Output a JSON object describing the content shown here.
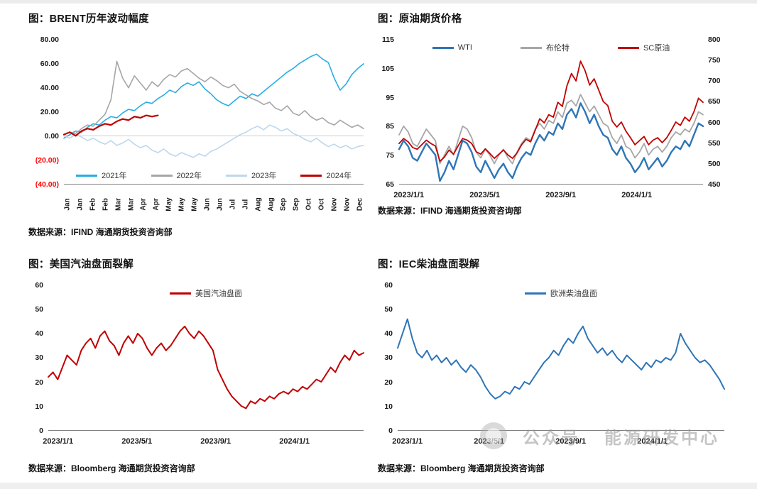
{
  "page": {
    "background": "#ffffff",
    "watermark": {
      "label": "公众号",
      "label2": "能源研发中心"
    }
  },
  "chart_data": [
    {
      "type": "line",
      "title": "图：BRENT历年波动幅度",
      "source": "数据来源：IFIND   海通期货投资咨询部",
      "ylim": [
        -40,
        80
      ],
      "yticks": [
        "80.00",
        "60.00",
        "40.00",
        "20.00",
        "0.00",
        "(20.00)",
        "(40.00)"
      ],
      "zero_line": 0,
      "grid": "zero-line-only",
      "legend_position": "bottom",
      "x_count": 52,
      "xticks_rotated": true,
      "xticks": [
        "Jan",
        "Jan",
        "Feb",
        "Feb",
        "Mar",
        "Mar",
        "Apr",
        "Apr",
        "May",
        "May",
        "May",
        "Jun",
        "Jun",
        "Jul",
        "Jul",
        "Aug",
        "Aug",
        "Sep",
        "Sep",
        "Oct",
        "Oct",
        "Nov",
        "Nov",
        "Dec"
      ],
      "series": [
        {
          "name": "2021年",
          "color": "#27AEE3",
          "width": 1.6,
          "values": [
            -2,
            1,
            4,
            3,
            7,
            10,
            9,
            13,
            16,
            15,
            19,
            22,
            21,
            25,
            28,
            27,
            31,
            34,
            38,
            36,
            41,
            44,
            42,
            45,
            39,
            35,
            30,
            27,
            25,
            29,
            33,
            31,
            35,
            33,
            37,
            41,
            45,
            49,
            53,
            56,
            60,
            63,
            66,
            68,
            64,
            61,
            48,
            38,
            43,
            51,
            56,
            60
          ]
        },
        {
          "name": "2022年",
          "color": "#A6A6A6",
          "width": 1.6,
          "values": [
            1,
            3,
            2,
            6,
            9,
            8,
            13,
            18,
            30,
            62,
            48,
            40,
            50,
            44,
            38,
            45,
            41,
            47,
            51,
            49,
            54,
            56,
            52,
            48,
            45,
            49,
            46,
            42,
            40,
            43,
            37,
            34,
            31,
            29,
            26,
            28,
            23,
            21,
            25,
            19,
            17,
            21,
            16,
            13,
            15,
            11,
            9,
            13,
            10,
            7,
            9,
            6
          ]
        },
        {
          "name": "2023年",
          "color": "#BDD7EE",
          "width": 1.6,
          "values": [
            0,
            -2,
            1,
            -1,
            -4,
            -2,
            -5,
            -7,
            -4,
            -8,
            -6,
            -3,
            -7,
            -10,
            -8,
            -12,
            -14,
            -11,
            -15,
            -17,
            -14,
            -16,
            -18,
            -15,
            -17,
            -13,
            -11,
            -8,
            -5,
            -2,
            1,
            3,
            6,
            8,
            5,
            9,
            7,
            4,
            6,
            2,
            0,
            -3,
            -5,
            -2,
            -6,
            -9,
            -7,
            -10,
            -8,
            -11,
            -9,
            -8
          ]
        },
        {
          "name": "2024年",
          "color": "#C00000",
          "width": 2.2,
          "values": [
            1,
            3,
            0,
            4,
            6,
            5,
            8,
            10,
            9,
            12,
            14,
            13,
            16,
            15,
            17,
            16,
            17
          ]
        }
      ]
    },
    {
      "type": "line",
      "title": "图：原油期货价格",
      "source": "数据来源：IFIND   海通期货投资咨询部",
      "ylim": [
        65,
        115
      ],
      "yticks": [
        "115",
        "105",
        "95",
        "85",
        "75",
        "65"
      ],
      "y2lim": [
        450,
        800
      ],
      "y2ticks": [
        "800",
        "750",
        "700",
        "650",
        "600",
        "550",
        "500",
        "450"
      ],
      "grid": "off",
      "legend_position": "top",
      "x_count": 68,
      "xticks": [
        "2023/1/1",
        "2023/5/1",
        "2023/9/1",
        "2024/1/1"
      ],
      "xtick_pos": [
        0,
        0.25,
        0.5,
        0.75
      ],
      "series": [
        {
          "name": "WTI",
          "color": "#2E75B6",
          "width": 2.4,
          "values": [
            77,
            80,
            78,
            74,
            73,
            76,
            79,
            77,
            75,
            66,
            69,
            73,
            70,
            75,
            80,
            79,
            76,
            71,
            69,
            73,
            70,
            67,
            70,
            72,
            69,
            67,
            71,
            74,
            76,
            75,
            79,
            82,
            80,
            83,
            82,
            86,
            84,
            89,
            91,
            88,
            93,
            90,
            86,
            89,
            85,
            82,
            81,
            77,
            75,
            78,
            74,
            72,
            69,
            71,
            74,
            70,
            72,
            74,
            71,
            73,
            76,
            78,
            77,
            80,
            78,
            82,
            86,
            85
          ]
        },
        {
          "name": "布伦特",
          "color": "#A6A6A6",
          "width": 1.8,
          "values": [
            82,
            85,
            83,
            79,
            78,
            81,
            84,
            82,
            80,
            72,
            75,
            78,
            75,
            80,
            85,
            84,
            81,
            76,
            74,
            77,
            75,
            72,
            75,
            77,
            74,
            72,
            76,
            79,
            81,
            80,
            84,
            86,
            84,
            87,
            86,
            90,
            88,
            93,
            94,
            92,
            96,
            93,
            90,
            92,
            89,
            86,
            85,
            81,
            79,
            82,
            78,
            77,
            74,
            76,
            79,
            75,
            77,
            78,
            76,
            78,
            81,
            83,
            82,
            84,
            83,
            86,
            90,
            89
          ]
        },
        {
          "name": "SC原油",
          "color": "#C00000",
          "width": 1.8,
          "axis": "right",
          "values": [
            548,
            560,
            552,
            538,
            534,
            545,
            556,
            548,
            542,
            505,
            515,
            532,
            522,
            542,
            560,
            556,
            548,
            528,
            522,
            535,
            524,
            512,
            522,
            532,
            520,
            512,
            525,
            545,
            558,
            552,
            580,
            608,
            598,
            618,
            612,
            648,
            638,
            688,
            718,
            700,
            748,
            725,
            690,
            705,
            678,
            650,
            640,
            602,
            588,
            600,
            578,
            562,
            545,
            555,
            565,
            545,
            556,
            562,
            550,
            562,
            580,
            600,
            592,
            612,
            602,
            625,
            658,
            648
          ]
        }
      ]
    },
    {
      "type": "line",
      "title": "图：美国汽油盘面裂解",
      "source": "数据来源：Bloomberg   海通期货投资咨询部",
      "ylim": [
        0,
        60
      ],
      "yticks": [
        "60",
        "50",
        "40",
        "30",
        "20",
        "10",
        "0"
      ],
      "grid": "off",
      "legend_position": "top",
      "x_count": 68,
      "xticks": [
        "2023/1/1",
        "2023/5/1",
        "2023/9/1",
        "2024/1/1"
      ],
      "xtick_pos": [
        0,
        0.25,
        0.5,
        0.75
      ],
      "series": [
        {
          "name": "美国汽油盘面",
          "color": "#C00000",
          "width": 2.0,
          "values": [
            22,
            24,
            21,
            26,
            31,
            29,
            27,
            33,
            36,
            38,
            34,
            39,
            41,
            37,
            35,
            31,
            36,
            39,
            36,
            40,
            38,
            34,
            31,
            34,
            36,
            33,
            35,
            38,
            41,
            43,
            40,
            38,
            41,
            39,
            36,
            33,
            25,
            21,
            17,
            14,
            12,
            10,
            9,
            12,
            11,
            13,
            12,
            14,
            13,
            15,
            16,
            15,
            17,
            16,
            18,
            17,
            19,
            21,
            20,
            23,
            26,
            24,
            28,
            31,
            29,
            33,
            31,
            32
          ]
        }
      ]
    },
    {
      "type": "line",
      "title": "图：IEC柴油盘面裂解",
      "source": "数据来源：Bloomberg   海通期货投资咨询部",
      "ylim": [
        0,
        60
      ],
      "yticks": [
        "60",
        "50",
        "40",
        "30",
        "20",
        "10",
        "0"
      ],
      "grid": "off",
      "legend_position": "top",
      "x_count": 68,
      "xticks": [
        "2023/1/1",
        "2023/5/1",
        "2023/9/1",
        "2024/1/1"
      ],
      "xtick_pos": [
        0,
        0.25,
        0.5,
        0.75
      ],
      "series": [
        {
          "name": "欧洲柴油盘面",
          "color": "#2E75B6",
          "width": 2.0,
          "values": [
            34,
            40,
            46,
            38,
            32,
            30,
            33,
            29,
            31,
            28,
            30,
            27,
            29,
            26,
            24,
            27,
            25,
            22,
            18,
            15,
            13,
            14,
            16,
            15,
            18,
            17,
            20,
            19,
            22,
            25,
            28,
            30,
            33,
            31,
            35,
            38,
            36,
            40,
            43,
            38,
            35,
            32,
            34,
            31,
            33,
            30,
            28,
            31,
            29,
            27,
            25,
            28,
            26,
            29,
            28,
            30,
            29,
            32,
            40,
            36,
            33,
            30,
            28,
            29,
            27,
            24,
            21,
            17
          ]
        }
      ]
    }
  ]
}
